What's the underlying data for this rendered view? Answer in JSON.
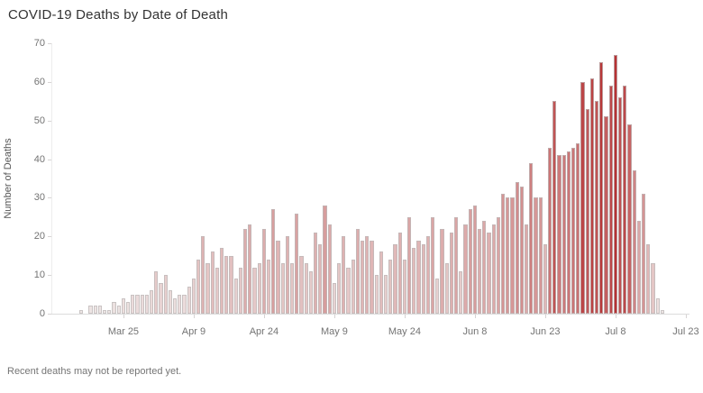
{
  "title": "COVID-19 Deaths by Date of Death",
  "footnote": "Recent deaths may not be reported yet.",
  "colors": {
    "background": "#ffffff",
    "title_text": "#333333",
    "axis_text": "#737373",
    "bar_ramp_min": "#efe9e8",
    "bar_ramp_max": "#b42a2c",
    "bar_border": "#beb9b9"
  },
  "chart_data": {
    "type": "bar",
    "title": "COVID-19 Deaths by Date of Death",
    "xlabel": "",
    "ylabel": "Number of Deaths",
    "ylim": [
      0,
      70
    ],
    "y_ticks": [
      0,
      10,
      20,
      30,
      40,
      50,
      60,
      70
    ],
    "grid": false,
    "legend_position": "none",
    "color_encoding": "bar color = value, sequential light-gray-pink to dark red ramp",
    "x_tick_labels": [
      "Mar 25",
      "Apr 9",
      "Apr 24",
      "May 9",
      "May 24",
      "Jun 8",
      "Jun 23",
      "Jul 8",
      "Jul 23"
    ],
    "x_ticks_day_offset": [
      9,
      24,
      39,
      54,
      69,
      84,
      99,
      114,
      129
    ],
    "dates": [
      "Mar 16",
      "Mar 17",
      "Mar 18",
      "Mar 19",
      "Mar 20",
      "Mar 21",
      "Mar 22",
      "Mar 23",
      "Mar 24",
      "Mar 25",
      "Mar 26",
      "Mar 27",
      "Mar 28",
      "Mar 29",
      "Mar 30",
      "Mar 31",
      "Apr 1",
      "Apr 2",
      "Apr 3",
      "Apr 4",
      "Apr 5",
      "Apr 6",
      "Apr 7",
      "Apr 8",
      "Apr 9",
      "Apr 10",
      "Apr 11",
      "Apr 12",
      "Apr 13",
      "Apr 14",
      "Apr 15",
      "Apr 16",
      "Apr 17",
      "Apr 18",
      "Apr 19",
      "Apr 20",
      "Apr 21",
      "Apr 22",
      "Apr 23",
      "Apr 24",
      "Apr 25",
      "Apr 26",
      "Apr 27",
      "Apr 28",
      "Apr 29",
      "Apr 30",
      "May 1",
      "May 2",
      "May 3",
      "May 4",
      "May 5",
      "May 6",
      "May 7",
      "May 8",
      "May 9",
      "May 10",
      "May 11",
      "May 12",
      "May 13",
      "May 14",
      "May 15",
      "May 16",
      "May 17",
      "May 18",
      "May 19",
      "May 20",
      "May 21",
      "May 22",
      "May 23",
      "May 24",
      "May 25",
      "May 26",
      "May 27",
      "May 28",
      "May 29",
      "May 30",
      "May 31",
      "Jun 1",
      "Jun 2",
      "Jun 3",
      "Jun 4",
      "Jun 5",
      "Jun 6",
      "Jun 7",
      "Jun 8",
      "Jun 9",
      "Jun 10",
      "Jun 11",
      "Jun 12",
      "Jun 13",
      "Jun 14",
      "Jun 15",
      "Jun 16",
      "Jun 17",
      "Jun 18",
      "Jun 19",
      "Jun 20",
      "Jun 21",
      "Jun 22",
      "Jun 23",
      "Jun 24",
      "Jun 25",
      "Jun 26",
      "Jun 27",
      "Jun 28",
      "Jun 29",
      "Jun 30",
      "Jul 1",
      "Jul 2",
      "Jul 3",
      "Jul 4",
      "Jul 5",
      "Jul 6",
      "Jul 7",
      "Jul 8",
      "Jul 9",
      "Jul 10",
      "Jul 11",
      "Jul 12",
      "Jul 13",
      "Jul 14",
      "Jul 15",
      "Jul 16",
      "Jul 17",
      "Jul 18"
    ],
    "values": [
      1,
      0,
      2,
      2,
      2,
      1,
      1,
      3,
      2,
      4,
      3,
      5,
      5,
      5,
      5,
      6,
      11,
      8,
      10,
      6,
      4,
      5,
      5,
      7,
      9,
      14,
      20,
      13,
      16,
      12,
      17,
      15,
      15,
      9,
      12,
      22,
      23,
      12,
      13,
      22,
      14,
      27,
      19,
      13,
      20,
      13,
      26,
      15,
      13,
      11,
      21,
      18,
      28,
      23,
      8,
      13,
      20,
      12,
      14,
      22,
      19,
      20,
      19,
      10,
      16,
      10,
      14,
      18,
      21,
      14,
      25,
      17,
      19,
      18,
      20,
      25,
      9,
      22,
      13,
      21,
      25,
      11,
      23,
      27,
      28,
      22,
      24,
      21,
      23,
      25,
      31,
      30,
      30,
      34,
      33,
      23,
      39,
      30,
      30,
      18,
      43,
      55,
      41,
      41,
      42,
      43,
      44,
      60,
      53,
      61,
      55,
      65,
      51,
      59,
      67,
      56,
      59,
      49,
      37,
      24,
      31,
      18,
      13,
      4,
      1
    ]
  }
}
